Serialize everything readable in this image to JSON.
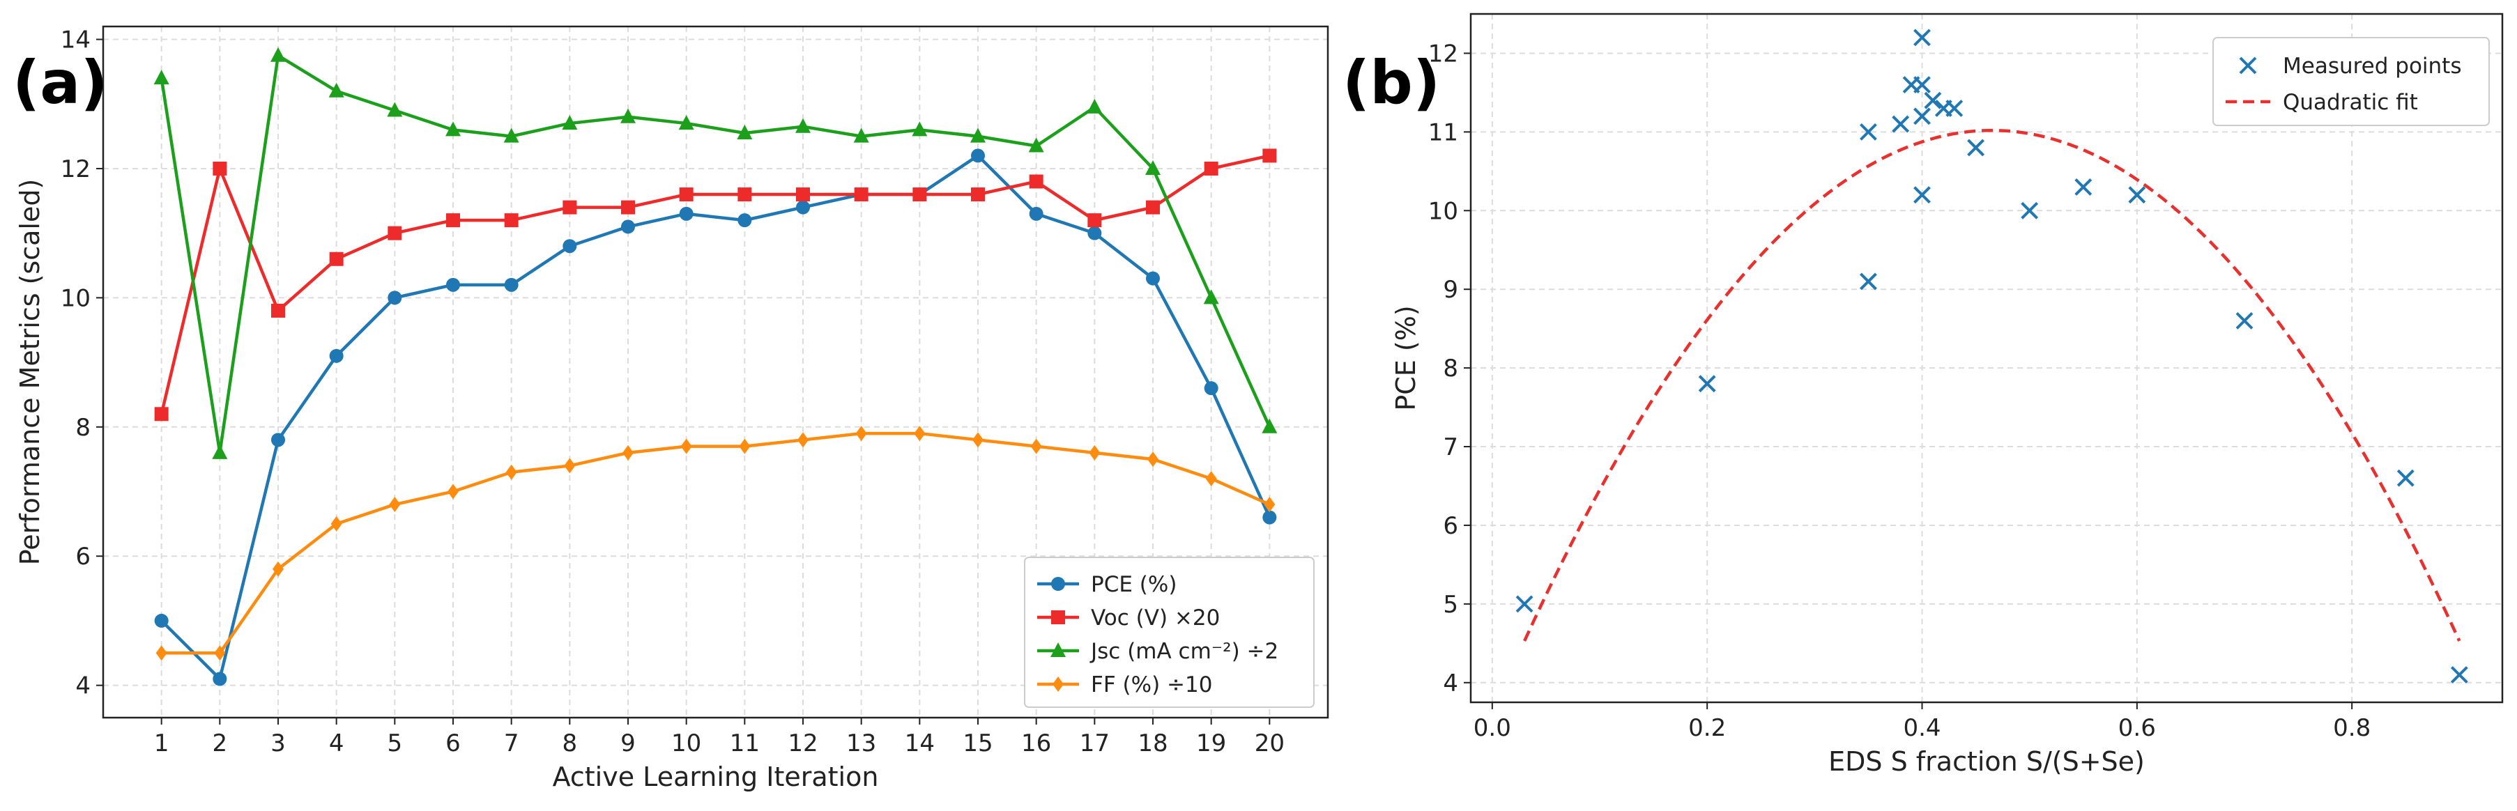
{
  "panels": [
    "(a)",
    "(b)"
  ],
  "chart_data": [
    {
      "type": "line",
      "x": [
        1,
        2,
        3,
        4,
        5,
        6,
        7,
        8,
        9,
        10,
        11,
        12,
        13,
        14,
        15,
        16,
        17,
        18,
        19,
        20
      ],
      "xlabel": "Active Learning Iteration",
      "ylabel": "Performance Metrics (scaled)",
      "ylim": [
        3.5,
        14.2
      ],
      "yticks": [
        4,
        6,
        8,
        10,
        12,
        14
      ],
      "grid": true,
      "legend_position": "lower-right",
      "series": [
        {
          "name": "PCE (%)",
          "color": "#1f77b4",
          "marker": "circle",
          "values": [
            5.0,
            4.1,
            7.8,
            9.1,
            10.0,
            10.2,
            10.2,
            10.8,
            11.1,
            11.3,
            11.2,
            11.4,
            11.6,
            11.6,
            12.2,
            11.3,
            11.0,
            10.3,
            8.6,
            6.6
          ]
        },
        {
          "name": "Voc (V) ×20",
          "color": "#ee2b2b",
          "marker": "square",
          "values": [
            8.2,
            12.0,
            9.8,
            10.6,
            11.0,
            11.2,
            11.2,
            11.4,
            11.4,
            11.6,
            11.6,
            11.6,
            11.6,
            11.6,
            11.6,
            11.8,
            11.2,
            11.4,
            12.0,
            12.2
          ]
        },
        {
          "name": "Jsc (mA cm⁻²) ÷2",
          "color": "#1ca01c",
          "marker": "triangle",
          "values": [
            13.4,
            7.6,
            13.75,
            13.2,
            12.9,
            12.6,
            12.5,
            12.7,
            12.8,
            12.7,
            12.55,
            12.65,
            12.5,
            12.6,
            12.5,
            12.35,
            12.95,
            12.0,
            10.0,
            8.0
          ]
        },
        {
          "name": "FF (%) ÷10",
          "color": "#ff8c0e",
          "marker": "diamond",
          "values": [
            4.5,
            4.5,
            5.8,
            6.5,
            6.8,
            7.0,
            7.3,
            7.4,
            7.6,
            7.7,
            7.7,
            7.8,
            7.9,
            7.9,
            7.8,
            7.7,
            7.6,
            7.5,
            7.2,
            6.8
          ]
        }
      ]
    },
    {
      "type": "scatter",
      "xlabel": "EDS S fraction S/(S+Se)",
      "ylabel": "PCE (%)",
      "xlim": [
        -0.02,
        0.94
      ],
      "ylim": [
        3.75,
        12.5
      ],
      "xticks": [
        0.0,
        0.2,
        0.4,
        0.6,
        0.8
      ],
      "yticks": [
        4,
        5,
        6,
        7,
        8,
        9,
        10,
        11,
        12
      ],
      "grid": true,
      "legend_position": "top-right",
      "series": [
        {
          "name": "Measured points",
          "color": "#1f77b4",
          "marker": "x",
          "x": [
            0.03,
            0.2,
            0.35,
            0.35,
            0.38,
            0.39,
            0.4,
            0.4,
            0.4,
            0.4,
            0.41,
            0.42,
            0.43,
            0.45,
            0.5,
            0.55,
            0.6,
            0.7,
            0.85,
            0.9
          ],
          "y": [
            5.0,
            7.8,
            9.1,
            11.0,
            11.1,
            11.6,
            12.2,
            11.6,
            11.2,
            10.2,
            11.4,
            11.3,
            11.3,
            10.8,
            10.0,
            10.3,
            10.2,
            8.6,
            6.6,
            4.1
          ]
        }
      ],
      "fit": {
        "name": "Quadratic fit",
        "color": "#e8312f",
        "style": "dashed",
        "x_range": [
          0.03,
          0.9
        ],
        "vertex_x": 0.465,
        "vertex_y": 11.02,
        "coef_a": -34.3
      }
    }
  ]
}
